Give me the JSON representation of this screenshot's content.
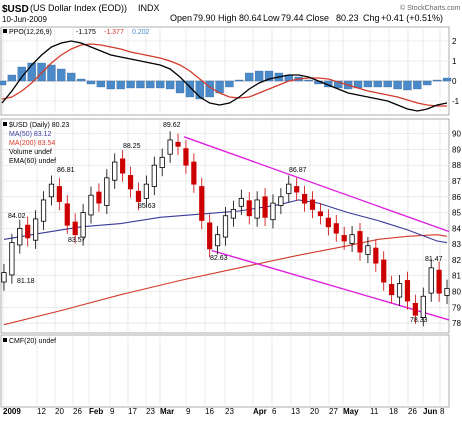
{
  "header": {
    "symbol": "$USD",
    "name": "(US Dollar Index (EOD))",
    "exchange": "INDX",
    "date": "10-Jun-2009",
    "open_label": "Open",
    "open": "79.90",
    "high_label": "High",
    "high": "80.64",
    "low_label": "Low",
    "low": "79.44",
    "close_label": "Close",
    "close": "80.23",
    "chg_label": "Chg",
    "chg": "+0.41 (+0.51%)",
    "watermark": "© StockCharts.com"
  },
  "colors": {
    "up_candle": "#000000",
    "down_candle": "#cc0000",
    "ma50": "#3a3a9a",
    "ma200": "#d43a2a",
    "channel": "#e020e0",
    "ppo_line": "#000000",
    "ppo_signal": "#d43a2a",
    "ppo_hist": "#4a8ac8",
    "grid": "#dddddd"
  },
  "chart_data": [
    {
      "type": "line",
      "title": "PPO(12,26,9)",
      "legend": [
        {
          "label": "PPO(12,26,9)",
          "value": "-1.175",
          "color": "#000000"
        },
        {
          "label": "",
          "value": "-1.377",
          "color": "#d43a2a"
        },
        {
          "label": "",
          "value": "0.202",
          "color": "#4a8ac8"
        }
      ],
      "y_ticks": [
        "2",
        "1",
        "0",
        "-1"
      ],
      "ylim": [
        -1.6,
        2.6
      ],
      "series": [
        {
          "name": "PPO",
          "style": "line",
          "x": [
            0,
            10,
            20,
            30,
            40,
            50,
            60,
            70,
            80,
            90,
            100,
            110,
            120,
            130,
            140,
            150,
            160,
            170,
            180,
            190,
            200,
            210,
            220,
            230,
            240,
            250,
            260,
            270,
            280,
            290,
            300,
            310,
            320,
            330,
            340,
            350,
            360,
            370,
            380,
            390,
            400,
            410,
            420,
            430,
            440,
            450
          ],
          "values": [
            -1.1,
            -0.5,
            0.2,
            0.8,
            1.3,
            1.7,
            1.9,
            2.0,
            1.9,
            1.7,
            1.5,
            1.3,
            1.2,
            1.1,
            1.0,
            0.9,
            0.8,
            0.6,
            0.2,
            -0.3,
            -0.8,
            -1.1,
            -1.2,
            -1.1,
            -0.8,
            -0.4,
            -0.1,
            0.1,
            0.2,
            0.3,
            0.3,
            0.2,
            0.0,
            -0.2,
            -0.4,
            -0.6,
            -0.7,
            -0.8,
            -0.9,
            -1.0,
            -1.2,
            -1.4,
            -1.5,
            -1.4,
            -1.2,
            -1.1
          ]
        },
        {
          "name": "Signal",
          "style": "line",
          "x": [
            0,
            10,
            20,
            30,
            40,
            50,
            60,
            70,
            80,
            90,
            100,
            110,
            120,
            130,
            140,
            150,
            160,
            170,
            180,
            190,
            200,
            210,
            220,
            230,
            240,
            250,
            260,
            270,
            280,
            290,
            300,
            310,
            320,
            330,
            340,
            350,
            360,
            370,
            380,
            390,
            400,
            410,
            420,
            430,
            440,
            450
          ],
          "values": [
            -0.9,
            -0.8,
            -0.5,
            -0.1,
            0.4,
            0.9,
            1.3,
            1.6,
            1.8,
            1.85,
            1.8,
            1.7,
            1.6,
            1.45,
            1.35,
            1.25,
            1.15,
            1.0,
            0.8,
            0.5,
            0.1,
            -0.3,
            -0.6,
            -0.8,
            -0.85,
            -0.8,
            -0.6,
            -0.4,
            -0.2,
            0.0,
            0.1,
            0.15,
            0.15,
            0.1,
            -0.05,
            -0.2,
            -0.35,
            -0.5,
            -0.6,
            -0.7,
            -0.8,
            -0.95,
            -1.1,
            -1.2,
            -1.25,
            -1.25
          ]
        },
        {
          "name": "Histogram",
          "style": "bar",
          "x": [
            0,
            10,
            20,
            30,
            40,
            50,
            60,
            70,
            80,
            90,
            100,
            110,
            120,
            130,
            140,
            150,
            160,
            170,
            180,
            190,
            200,
            210,
            220,
            230,
            240,
            250,
            260,
            270,
            280,
            290,
            300,
            310,
            320,
            330,
            340,
            350,
            360,
            370,
            380,
            390,
            400,
            410,
            420,
            430,
            440,
            450
          ],
          "values": [
            -0.2,
            0.3,
            0.7,
            0.9,
            0.9,
            0.8,
            0.6,
            0.4,
            0.1,
            -0.15,
            -0.3,
            -0.4,
            -0.4,
            -0.35,
            -0.35,
            -0.35,
            -0.35,
            -0.4,
            -0.6,
            -0.8,
            -0.9,
            -0.8,
            -0.6,
            -0.3,
            0.05,
            0.4,
            0.5,
            0.5,
            0.4,
            0.3,
            0.2,
            0.05,
            -0.15,
            -0.3,
            -0.35,
            -0.4,
            -0.35,
            -0.3,
            -0.3,
            -0.3,
            -0.4,
            -0.45,
            -0.4,
            -0.2,
            0.05,
            0.15
          ]
        }
      ]
    },
    {
      "type": "line",
      "title": "$USD (Daily) 80.23",
      "legend": [
        {
          "label": "$USD (Daily) 80.23",
          "color": "#000000"
        },
        {
          "label": "MA(50) 83.12",
          "color": "#3a3a9a"
        },
        {
          "label": "MA(200) 83.54",
          "color": "#d43a2a"
        },
        {
          "label": "Volume undef",
          "color": "#000000"
        },
        {
          "label": "EMA(60) undef",
          "color": "#000000"
        }
      ],
      "y_ticks": [
        "90",
        "89",
        "88",
        "87",
        "86",
        "85",
        "84",
        "83",
        "82",
        "81",
        "80",
        "79",
        "78"
      ],
      "ylim": [
        77.5,
        90.8
      ],
      "price_x": [
        2,
        10,
        18,
        26,
        34,
        42,
        50,
        58,
        66,
        74,
        82,
        90,
        98,
        106,
        114,
        122,
        130,
        138,
        146,
        154,
        162,
        170,
        178,
        186,
        194,
        202,
        210,
        218,
        226,
        234,
        242,
        250,
        258,
        266,
        274,
        282,
        290,
        298,
        306,
        314,
        322,
        330,
        338,
        346,
        354,
        362,
        370,
        378,
        386,
        394,
        402,
        410,
        418,
        426,
        434,
        442,
        450
      ],
      "price_close": [
        81.2,
        83.1,
        84.0,
        83.4,
        84.6,
        85.8,
        86.8,
        85.7,
        84.2,
        83.6,
        85.0,
        86.1,
        85.6,
        87.2,
        88.2,
        87.5,
        86.5,
        85.7,
        86.8,
        88.0,
        88.5,
        89.6,
        89.2,
        88.0,
        86.8,
        84.5,
        82.7,
        83.6,
        84.8,
        85.2,
        85.9,
        84.8,
        85.8,
        84.7,
        85.6,
        86.0,
        86.8,
        86.3,
        85.6,
        85.2,
        84.8,
        84.1,
        83.7,
        83.2,
        83.6,
        82.5,
        82.9,
        81.8,
        80.6,
        79.8,
        80.5,
        79.4,
        78.5,
        79.7,
        81.5,
        79.9,
        80.2
      ],
      "ma50": {
        "x": [
          2,
          40,
          80,
          120,
          160,
          200,
          240,
          280,
          300,
          320,
          350,
          380,
          410,
          440,
          450
        ],
        "values": [
          83.3,
          83.7,
          84.1,
          84.3,
          84.7,
          84.9,
          85.1,
          85.5,
          85.8,
          85.6,
          85.0,
          84.5,
          83.9,
          83.2,
          83.1
        ]
      },
      "ma200": {
        "x": [
          2,
          60,
          120,
          180,
          240,
          300,
          350,
          380,
          410,
          440,
          450
        ],
        "values": [
          77.9,
          78.8,
          79.8,
          80.7,
          81.5,
          82.3,
          82.9,
          83.3,
          83.5,
          83.6,
          83.5
        ]
      },
      "channel_upper": {
        "x": [
          184,
          452
        ],
        "values": [
          89.8,
          83.8
        ]
      },
      "channel_lower": {
        "x": [
          212,
          452
        ],
        "values": [
          82.6,
          78.2
        ]
      },
      "annotations": [
        "89.62",
        "88.25",
        "86.81",
        "84.02",
        "83.57",
        "85.63",
        "81.18",
        "86.87",
        "82.63",
        "81.47",
        "78.33"
      ]
    },
    {
      "type": "line",
      "title": "CMF(20) undef",
      "legend": [
        {
          "label": "CMF(20) undef",
          "color": "#000000"
        }
      ]
    }
  ],
  "x_axis": {
    "labels": [
      "2009",
      "12",
      "20",
      "26",
      "Feb",
      "9",
      "17",
      "23",
      "Mar",
      "9",
      "16",
      "23",
      "Apr",
      "6",
      "13",
      "20",
      "27",
      "May",
      "11",
      "18",
      "26",
      "Jun",
      "8"
    ]
  }
}
